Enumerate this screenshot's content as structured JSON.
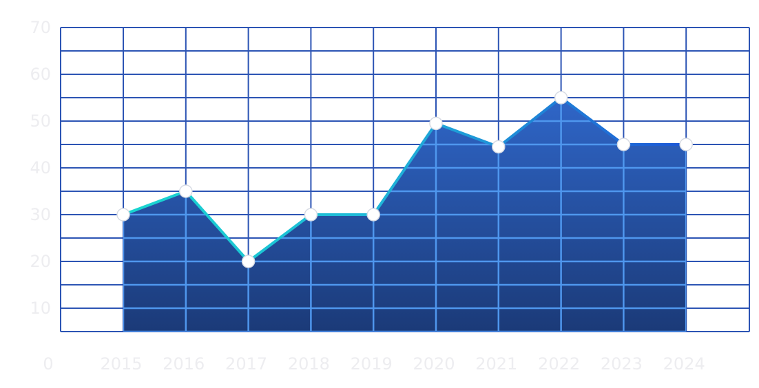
{
  "chart_data": {
    "type": "area",
    "title": "",
    "xlabel": "",
    "ylabel": "",
    "categories": [
      "2015",
      "2016",
      "2017",
      "2018",
      "2019",
      "2020",
      "2021",
      "2022",
      "2023",
      "2024"
    ],
    "series": [
      {
        "values": [
          30,
          35,
          20,
          30,
          30,
          49.5,
          44.5,
          55,
          45,
          45
        ]
      }
    ],
    "y_ticks": [
      "10",
      "20",
      "30",
      "40",
      "50",
      "60",
      "70"
    ],
    "origin_label": "0",
    "ylim": [
      5,
      70
    ],
    "grid": true,
    "colors": {
      "grid": "#2c54b4",
      "area_top": "#2f66c8",
      "area_bottom": "#1b3a78",
      "line_start": "#19d6d0",
      "line_end": "#1d56d6",
      "inner_grid": "#4f97ee",
      "marker_fill": "#ffffff",
      "tick_text": "#ededf0"
    }
  }
}
